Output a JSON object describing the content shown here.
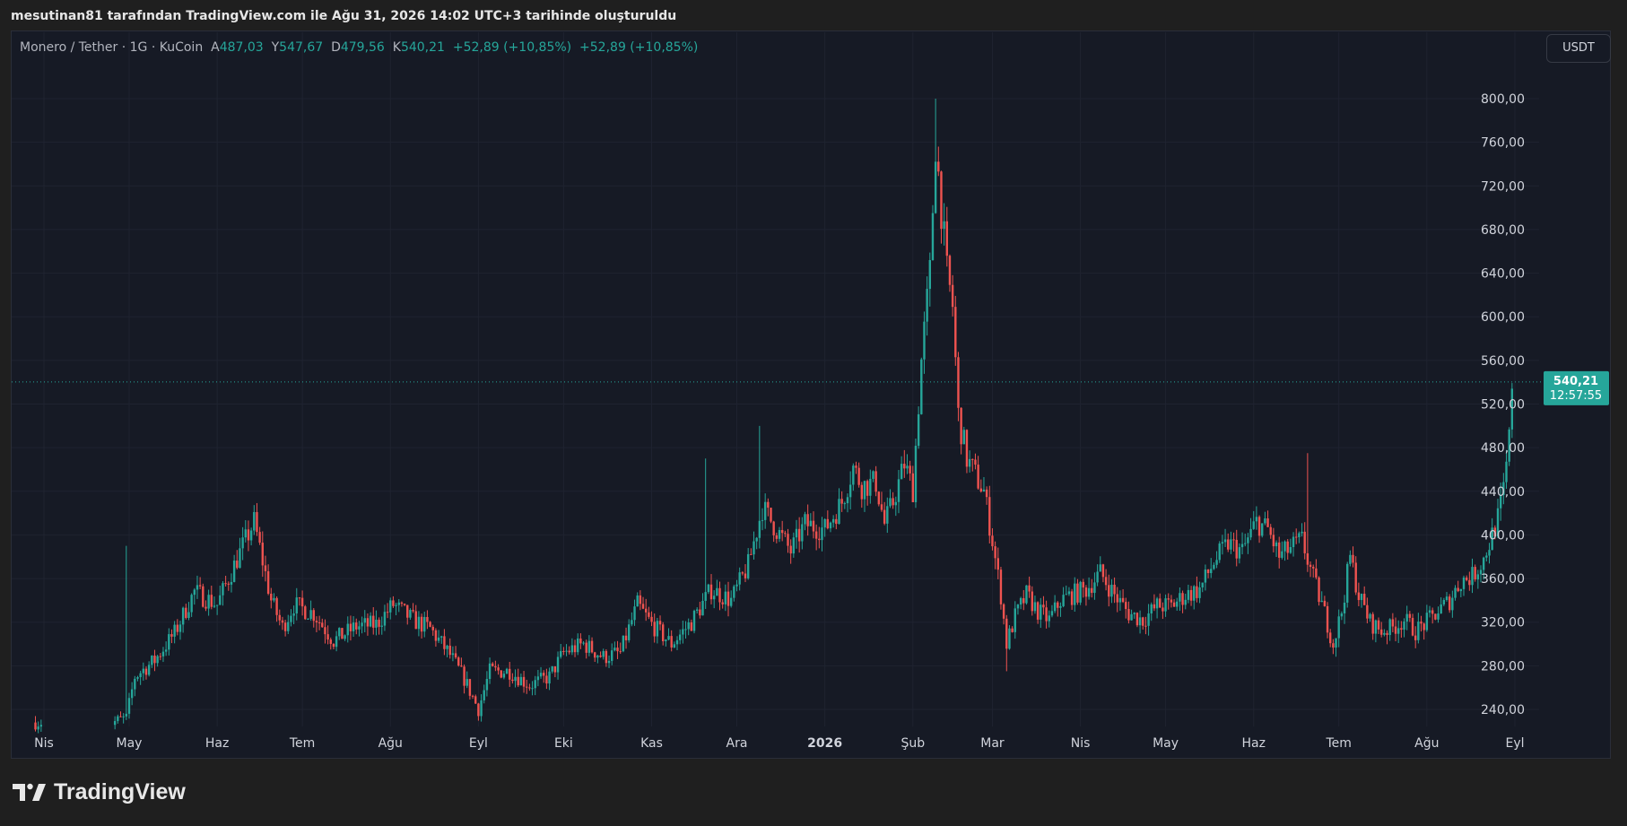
{
  "caption": "mesutinan81 tarafından TradingView.com ile Ağu 31, 2026 14:02 UTC+3 tarihinde oluşturuldu",
  "legend": {
    "symbol": "Monero / Tether · 1G · KuCoin",
    "open_label": "A",
    "open": "487,03",
    "high_label": "Y",
    "high": "547,67",
    "low_label": "D",
    "low": "479,56",
    "close_label": "K",
    "close": "540,21",
    "change": "+52,89 (+10,85%)",
    "change2": "+52,89 (+10,85%)"
  },
  "currency_button": "USDT",
  "price_tag": {
    "price": "540,21",
    "countdown": "12:57:55"
  },
  "brand": {
    "name": "TradingView"
  },
  "colors": {
    "up": "#26a69a",
    "down": "#ef5350",
    "background": "#161a25",
    "grid": "#1f2330",
    "text": "#b2b5be"
  },
  "chart_data": {
    "type": "candlestick",
    "ylim": [
      220,
      820
    ],
    "y_ticks": [
      {
        "value": 240,
        "label": "240,00"
      },
      {
        "value": 280,
        "label": "280,00"
      },
      {
        "value": 320,
        "label": "320,00"
      },
      {
        "value": 360,
        "label": "360,00"
      },
      {
        "value": 400,
        "label": "400,00"
      },
      {
        "value": 440,
        "label": "440,00"
      },
      {
        "value": 480,
        "label": "480,00"
      },
      {
        "value": 520,
        "label": "520,00"
      },
      {
        "value": 560,
        "label": "560,00"
      },
      {
        "value": 600,
        "label": "600,00"
      },
      {
        "value": 640,
        "label": "640,00"
      },
      {
        "value": 680,
        "label": "680,00"
      },
      {
        "value": 720,
        "label": "720,00"
      },
      {
        "value": 760,
        "label": "760,00"
      },
      {
        "value": 800,
        "label": "800,00"
      }
    ],
    "x_ticks": [
      {
        "date": "2025-04-01",
        "label": "Nis"
      },
      {
        "date": "2025-05-01",
        "label": "May"
      },
      {
        "date": "2025-06-01",
        "label": "Haz"
      },
      {
        "date": "2025-07-01",
        "label": "Tem"
      },
      {
        "date": "2025-08-01",
        "label": "Ağu"
      },
      {
        "date": "2025-09-01",
        "label": "Eyl"
      },
      {
        "date": "2025-10-01",
        "label": "Eki"
      },
      {
        "date": "2025-11-01",
        "label": "Kas"
      },
      {
        "date": "2025-12-01",
        "label": "Ara"
      },
      {
        "date": "2026-01-01",
        "label": "2026",
        "bold": true
      },
      {
        "date": "2026-02-01",
        "label": "Şub"
      },
      {
        "date": "2026-03-01",
        "label": "Mar"
      },
      {
        "date": "2026-04-01",
        "label": "Nis"
      },
      {
        "date": "2026-05-01",
        "label": "May"
      },
      {
        "date": "2026-06-01",
        "label": "Haz"
      },
      {
        "date": "2026-07-01",
        "label": "Tem"
      },
      {
        "date": "2026-08-01",
        "label": "Ağu"
      },
      {
        "date": "2026-09-01",
        "label": "Eyl"
      }
    ],
    "last_price": 540.21,
    "series": [
      {
        "date": "2025-03-29",
        "close": 228
      },
      {
        "date": "2025-04-25",
        "close": 228
      },
      {
        "date": "2025-04-30",
        "close": 232
      },
      {
        "date": "2025-05-03",
        "close": 270
      },
      {
        "date": "2025-05-10",
        "close": 285
      },
      {
        "date": "2025-05-17",
        "close": 310
      },
      {
        "date": "2025-05-24",
        "close": 348
      },
      {
        "date": "2025-06-01",
        "close": 336
      },
      {
        "date": "2025-06-08",
        "close": 378
      },
      {
        "date": "2025-06-14",
        "close": 412
      },
      {
        "date": "2025-06-20",
        "close": 340
      },
      {
        "date": "2025-06-24",
        "close": 315
      },
      {
        "date": "2025-06-28",
        "close": 336
      },
      {
        "date": "2025-07-05",
        "close": 328
      },
      {
        "date": "2025-07-12",
        "close": 303
      },
      {
        "date": "2025-07-20",
        "close": 316
      },
      {
        "date": "2025-07-27",
        "close": 318
      },
      {
        "date": "2025-08-02",
        "close": 336
      },
      {
        "date": "2025-08-09",
        "close": 322
      },
      {
        "date": "2025-08-15",
        "close": 314
      },
      {
        "date": "2025-08-22",
        "close": 290
      },
      {
        "date": "2025-08-27",
        "close": 268
      },
      {
        "date": "2025-09-01",
        "close": 240
      },
      {
        "date": "2025-09-05",
        "close": 275
      },
      {
        "date": "2025-09-12",
        "close": 275
      },
      {
        "date": "2025-09-19",
        "close": 262
      },
      {
        "date": "2025-09-26",
        "close": 270
      },
      {
        "date": "2025-10-01",
        "close": 292
      },
      {
        "date": "2025-10-08",
        "close": 300
      },
      {
        "date": "2025-10-15",
        "close": 288
      },
      {
        "date": "2025-10-21",
        "close": 292
      },
      {
        "date": "2025-10-27",
        "close": 336
      },
      {
        "date": "2025-11-01",
        "close": 318
      },
      {
        "date": "2025-11-08",
        "close": 300
      },
      {
        "date": "2025-11-15",
        "close": 320
      },
      {
        "date": "2025-11-22",
        "close": 350
      },
      {
        "date": "2025-11-29",
        "close": 340
      },
      {
        "date": "2025-12-05",
        "close": 372
      },
      {
        "date": "2025-12-10",
        "close": 425
      },
      {
        "date": "2025-12-15",
        "close": 405
      },
      {
        "date": "2025-12-20",
        "close": 385
      },
      {
        "date": "2025-12-25",
        "close": 410
      },
      {
        "date": "2026-01-01",
        "close": 405
      },
      {
        "date": "2026-01-07",
        "close": 430
      },
      {
        "date": "2026-01-11",
        "close": 462
      },
      {
        "date": "2026-01-14",
        "close": 445
      },
      {
        "date": "2026-01-19",
        "close": 448
      },
      {
        "date": "2026-01-22",
        "close": 410
      },
      {
        "date": "2026-01-25",
        "close": 430
      },
      {
        "date": "2026-01-29",
        "close": 465
      },
      {
        "date": "2026-02-01",
        "close": 442
      },
      {
        "date": "2026-02-04",
        "close": 560
      },
      {
        "date": "2026-02-07",
        "close": 640
      },
      {
        "date": "2026-02-09",
        "close": 760
      },
      {
        "date": "2026-02-11",
        "close": 700
      },
      {
        "date": "2026-02-13",
        "close": 640
      },
      {
        "date": "2026-02-15",
        "close": 610
      },
      {
        "date": "2026-02-17",
        "close": 510
      },
      {
        "date": "2026-02-20",
        "close": 470
      },
      {
        "date": "2026-02-23",
        "close": 455
      },
      {
        "date": "2026-02-26",
        "close": 440
      },
      {
        "date": "2026-03-01",
        "close": 395
      },
      {
        "date": "2026-03-04",
        "close": 345
      },
      {
        "date": "2026-03-06",
        "close": 300
      },
      {
        "date": "2026-03-09",
        "close": 325
      },
      {
        "date": "2026-03-13",
        "close": 345
      },
      {
        "date": "2026-03-17",
        "close": 330
      },
      {
        "date": "2026-03-21",
        "close": 322
      },
      {
        "date": "2026-03-25",
        "close": 340
      },
      {
        "date": "2026-03-29",
        "close": 345
      },
      {
        "date": "2026-04-03",
        "close": 350
      },
      {
        "date": "2026-04-08",
        "close": 365
      },
      {
        "date": "2026-04-13",
        "close": 345
      },
      {
        "date": "2026-04-18",
        "close": 328
      },
      {
        "date": "2026-04-23",
        "close": 322
      },
      {
        "date": "2026-04-28",
        "close": 335
      },
      {
        "date": "2026-05-03",
        "close": 335
      },
      {
        "date": "2026-05-08",
        "close": 345
      },
      {
        "date": "2026-05-13",
        "close": 350
      },
      {
        "date": "2026-05-18",
        "close": 375
      },
      {
        "date": "2026-05-23",
        "close": 392
      },
      {
        "date": "2026-05-28",
        "close": 385
      },
      {
        "date": "2026-06-02",
        "close": 412
      },
      {
        "date": "2026-06-06",
        "close": 405
      },
      {
        "date": "2026-06-10",
        "close": 380
      },
      {
        "date": "2026-06-14",
        "close": 388
      },
      {
        "date": "2026-06-18",
        "close": 395
      },
      {
        "date": "2026-06-22",
        "close": 360
      },
      {
        "date": "2026-06-26",
        "close": 328
      },
      {
        "date": "2026-06-29",
        "close": 300
      },
      {
        "date": "2026-07-02",
        "close": 330
      },
      {
        "date": "2026-07-05",
        "close": 380
      },
      {
        "date": "2026-07-08",
        "close": 345
      },
      {
        "date": "2026-07-12",
        "close": 320
      },
      {
        "date": "2026-07-16",
        "close": 312
      },
      {
        "date": "2026-07-20",
        "close": 315
      },
      {
        "date": "2026-07-24",
        "close": 322
      },
      {
        "date": "2026-07-28",
        "close": 312
      },
      {
        "date": "2026-08-01",
        "close": 320
      },
      {
        "date": "2026-08-05",
        "close": 330
      },
      {
        "date": "2026-08-09",
        "close": 340
      },
      {
        "date": "2026-08-13",
        "close": 358
      },
      {
        "date": "2026-08-17",
        "close": 362
      },
      {
        "date": "2026-08-21",
        "close": 378
      },
      {
        "date": "2026-08-24",
        "close": 400
      },
      {
        "date": "2026-08-26",
        "close": 415
      },
      {
        "date": "2026-08-28",
        "close": 440
      },
      {
        "date": "2026-08-30",
        "close": 487.03
      },
      {
        "date": "2026-08-31",
        "close": 540.21
      }
    ]
  }
}
